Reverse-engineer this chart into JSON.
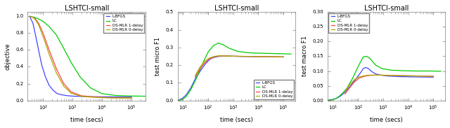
{
  "title": "LSHTCl-small",
  "colors": {
    "lbfgs": "#4444ff",
    "lc": "#00cc00",
    "ds_mlr_1delay": "#ff4444",
    "ds_mlr_0delay": "#aaaa00"
  },
  "plot1": {
    "ylabel": "objective",
    "xlabel": "time (secs)",
    "xlim": [
      30,
      300000
    ],
    "ylim": [
      0,
      1.05
    ],
    "yticks": [
      0.0,
      0.2,
      0.4,
      0.6,
      0.8,
      1.0
    ],
    "lbfgs": {
      "x": [
        35,
        45,
        55,
        70,
        90,
        120,
        160,
        220,
        300,
        450,
        700,
        1100,
        2000,
        5000,
        15000,
        100000
      ],
      "y": [
        1.0,
        0.92,
        0.78,
        0.6,
        0.42,
        0.28,
        0.18,
        0.12,
        0.08,
        0.065,
        0.055,
        0.05,
        0.047,
        0.044,
        0.042,
        0.04
      ]
    },
    "lc": {
      "x": [
        35,
        50,
        70,
        100,
        160,
        280,
        500,
        900,
        1800,
        4000,
        10000,
        30000,
        100000,
        300000
      ],
      "y": [
        1.0,
        0.99,
        0.97,
        0.94,
        0.88,
        0.78,
        0.62,
        0.45,
        0.28,
        0.15,
        0.08,
        0.058,
        0.052,
        0.05
      ]
    },
    "ds1": {
      "x": [
        35,
        45,
        55,
        70,
        100,
        160,
        280,
        500,
        900,
        2000,
        6000,
        20000,
        100000
      ],
      "y": [
        1.0,
        0.99,
        0.97,
        0.92,
        0.8,
        0.6,
        0.38,
        0.2,
        0.1,
        0.055,
        0.04,
        0.032,
        0.03
      ]
    },
    "ds0": {
      "x": [
        35,
        45,
        55,
        70,
        100,
        160,
        280,
        500,
        900,
        2000,
        6000,
        20000,
        100000
      ],
      "y": [
        1.0,
        0.99,
        0.96,
        0.9,
        0.76,
        0.55,
        0.33,
        0.17,
        0.085,
        0.048,
        0.036,
        0.03,
        0.028
      ]
    }
  },
  "plot2": {
    "ylabel": "test micro F1",
    "xlabel": "time (secs)",
    "xlim": [
      6,
      300000
    ],
    "ylim": [
      0,
      0.5
    ],
    "yticks": [
      0.0,
      0.1,
      0.2,
      0.3,
      0.4,
      0.5
    ],
    "lbfgs": {
      "x": [
        6,
        9,
        13,
        20,
        30,
        50,
        80,
        120,
        180,
        280,
        450,
        700,
        1200,
        2500,
        8000,
        30000,
        100000
      ],
      "y": [
        0.0,
        0.01,
        0.03,
        0.07,
        0.12,
        0.17,
        0.21,
        0.235,
        0.245,
        0.25,
        0.252,
        0.251,
        0.25,
        0.249,
        0.248,
        0.247,
        0.246
      ]
    },
    "lc": {
      "x": [
        6,
        9,
        13,
        20,
        35,
        60,
        100,
        160,
        250,
        400,
        700,
        1500,
        4000,
        15000,
        60000,
        200000
      ],
      "y": [
        0.0,
        0.005,
        0.02,
        0.06,
        0.13,
        0.21,
        0.275,
        0.31,
        0.325,
        0.315,
        0.295,
        0.278,
        0.27,
        0.267,
        0.265,
        0.263
      ]
    },
    "ds1": {
      "x": [
        30,
        45,
        70,
        110,
        180,
        280,
        450,
        800,
        1800,
        6000,
        25000,
        100000
      ],
      "y": [
        0.13,
        0.175,
        0.21,
        0.235,
        0.248,
        0.252,
        0.252,
        0.251,
        0.25,
        0.249,
        0.248,
        0.247
      ]
    },
    "ds0": {
      "x": [
        30,
        45,
        70,
        110,
        180,
        280,
        450,
        800,
        1800,
        6000,
        25000,
        100000
      ],
      "y": [
        0.14,
        0.185,
        0.22,
        0.24,
        0.25,
        0.253,
        0.252,
        0.251,
        0.25,
        0.249,
        0.248,
        0.247
      ]
    }
  },
  "plot3": {
    "ylabel": "test macro F1",
    "xlabel": "time (secs)",
    "xlim": [
      6,
      300000
    ],
    "ylim": [
      0,
      0.3
    ],
    "yticks": [
      0.0,
      0.05,
      0.1,
      0.15,
      0.2,
      0.25,
      0.3
    ],
    "lbfgs": {
      "x": [
        6,
        9,
        13,
        20,
        30,
        50,
        80,
        120,
        160,
        200,
        260,
        350,
        500,
        800,
        1500,
        4000,
        15000,
        100000
      ],
      "y": [
        0.0,
        0.002,
        0.006,
        0.015,
        0.028,
        0.05,
        0.072,
        0.092,
        0.108,
        0.112,
        0.108,
        0.098,
        0.09,
        0.086,
        0.083,
        0.081,
        0.08,
        0.079
      ]
    },
    "lc": {
      "x": [
        6,
        9,
        13,
        20,
        35,
        60,
        100,
        160,
        220,
        300,
        500,
        900,
        2000,
        6000,
        20000,
        80000,
        200000
      ],
      "y": [
        0.0,
        0.002,
        0.006,
        0.018,
        0.04,
        0.075,
        0.115,
        0.148,
        0.15,
        0.142,
        0.12,
        0.108,
        0.103,
        0.101,
        0.1,
        0.1,
        0.099
      ]
    },
    "ds1": {
      "x": [
        30,
        45,
        70,
        110,
        180,
        280,
        450,
        800,
        1800,
        6000,
        25000,
        100000
      ],
      "y": [
        0.022,
        0.042,
        0.062,
        0.076,
        0.082,
        0.085,
        0.086,
        0.086,
        0.085,
        0.084,
        0.083,
        0.082
      ]
    },
    "ds0": {
      "x": [
        30,
        45,
        70,
        110,
        180,
        280,
        450,
        800,
        1800,
        6000,
        25000,
        100000
      ],
      "y": [
        0.03,
        0.052,
        0.07,
        0.08,
        0.084,
        0.086,
        0.086,
        0.086,
        0.085,
        0.084,
        0.083,
        0.082
      ]
    }
  }
}
